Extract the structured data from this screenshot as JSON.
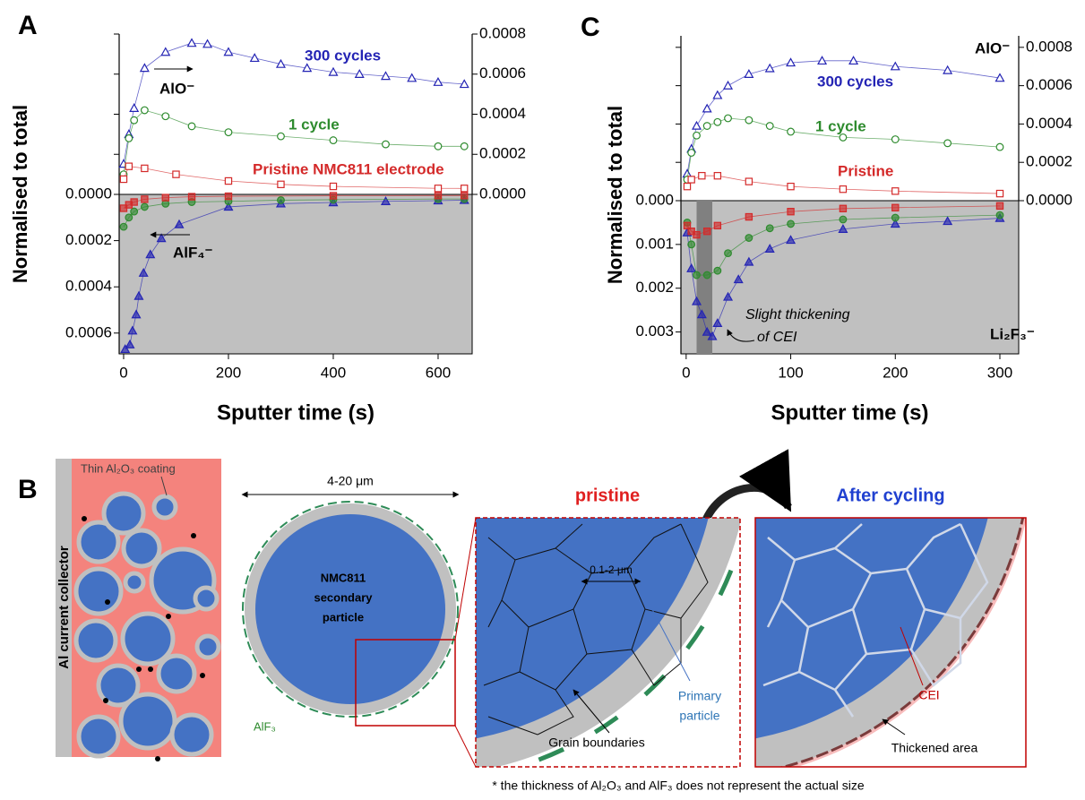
{
  "chart_data": [
    {
      "type": "line",
      "panel": "A",
      "y_label": "Normalised to total",
      "x_label": "Sputter time (s)",
      "xlim": [
        -8.5,
        665
      ],
      "xticks": [
        0,
        200,
        400,
        600
      ],
      "ylim": [
        0.00069,
        0
      ],
      "yticks": [
        {
          "value": 0,
          "label": "0.0000"
        },
        0.0002,
        0.0004,
        0.0006
      ],
      "y2lim": [
        0,
        0.0008
      ],
      "y2ticks": [
        {
          "value": 0,
          "label": "0.0000"
        },
        0.0002,
        0.0004,
        0.0006,
        0.0008
      ],
      "annotations": [
        "AlO⁻",
        "AlF₄⁻"
      ],
      "series": [
        {
          "name": "300 cycles",
          "color": "#2424b4",
          "marker": "triangle",
          "filled": false,
          "axis": "y2",
          "x": [
            0,
            10,
            20,
            40,
            80,
            130,
            160,
            200,
            250,
            300,
            350,
            400,
            450,
            500,
            550,
            600,
            650
          ],
          "values": [
            0.000152,
            0.0003,
            0.00043,
            0.00063,
            0.00071,
            0.000755,
            0.00075,
            0.00071,
            0.00068,
            0.00065,
            0.00063,
            0.00061,
            0.0006,
            0.00059,
            0.00058,
            0.00056,
            0.00055
          ]
        },
        {
          "name": "1 cycle",
          "color": "#2e8b2e",
          "marker": "circle",
          "filled": false,
          "axis": "y2",
          "x": [
            0,
            10,
            20,
            40,
            80,
            130,
            200,
            300,
            400,
            500,
            600,
            650
          ],
          "values": [
            0.0001,
            0.00028,
            0.00037,
            0.00042,
            0.00039,
            0.00034,
            0.00031,
            0.00029,
            0.00027,
            0.00025,
            0.00024,
            0.00024
          ]
        },
        {
          "name": "Pristine NMC811 electrode",
          "color": "#d42a2a",
          "marker": "square",
          "filled": false,
          "axis": "y2",
          "x": [
            0,
            10,
            40,
            100,
            200,
            300,
            400,
            600,
            650
          ],
          "values": [
            7.6e-05,
            0.00014,
            0.00013,
            0.0001,
            6.7e-05,
            5e-05,
            4e-05,
            3e-05,
            3e-05
          ]
        },
        {
          "color": "#2424b4",
          "marker": "triangle",
          "filled": true,
          "x": [
            3,
            12,
            17,
            24,
            29,
            38,
            51,
            72,
            106,
            200,
            300,
            400,
            500,
            600,
            650
          ],
          "values": [
            0.00067,
            0.00065,
            0.00059,
            0.00052,
            0.00044,
            0.00034,
            0.00026,
            0.00019,
            0.00013,
            5.4e-05,
            4e-05,
            3.5e-05,
            3e-05,
            2.7e-05,
            2.5e-05
          ]
        },
        {
          "color": "#2e8b2e",
          "marker": "circle",
          "filled": true,
          "x": [
            0,
            10,
            20,
            40,
            80,
            130,
            200,
            300,
            400,
            600,
            650
          ],
          "values": [
            0.00014,
            0.0001,
            7.4e-05,
            5.4e-05,
            4e-05,
            3.3e-05,
            3e-05,
            2.5e-05,
            2.3e-05,
            2e-05,
            2e-05
          ]
        },
        {
          "color": "#d42a2a",
          "marker": "square",
          "filled": true,
          "x": [
            0,
            10,
            20,
            40,
            80,
            130,
            200,
            400,
            600,
            650
          ],
          "values": [
            6e-05,
            4.5e-05,
            3.3e-05,
            2.1e-05,
            1.4e-05,
            1e-05,
            8e-06,
            6e-06,
            5e-06,
            5e-06
          ]
        }
      ]
    },
    {
      "type": "line",
      "panel": "C",
      "y_label": "Normalised to total",
      "x_label": "Sputter time (s)",
      "xlim": [
        -5,
        318
      ],
      "xticks": [
        0,
        100,
        200,
        300
      ],
      "ylim": [
        0.0035,
        0
      ],
      "yticks": [
        {
          "value": 0,
          "label": "0.000"
        },
        0.001,
        0.002,
        0.003
      ],
      "y2lim": [
        0,
        0.00086
      ],
      "y2ticks": [
        {
          "value": 0,
          "label": "0.0000"
        },
        0.0002,
        0.0004,
        0.0006,
        0.0008
      ],
      "shaded_range": [
        10,
        25
      ],
      "annotations": [
        "AlO⁻",
        "Li₂F₃⁻",
        "Slight thickening",
        "of CEI"
      ],
      "series": [
        {
          "name": "300 cycles",
          "color": "#2424b4",
          "marker": "triangle",
          "filled": false,
          "axis": "y2",
          "x": [
            1,
            5,
            10,
            20,
            30,
            40,
            60,
            80,
            100,
            130,
            160,
            200,
            250,
            300
          ],
          "values": [
            0.00014,
            0.00027,
            0.00039,
            0.00048,
            0.00055,
            0.0006,
            0.00066,
            0.00069,
            0.00072,
            0.00073,
            0.00073,
            0.0007,
            0.00068,
            0.00064
          ]
        },
        {
          "name": "1 cycle",
          "color": "#2e8b2e",
          "marker": "circle",
          "filled": false,
          "axis": "y2",
          "x": [
            1,
            5,
            10,
            20,
            30,
            40,
            60,
            80,
            100,
            150,
            200,
            250,
            300
          ],
          "values": [
            0.00011,
            0.00025,
            0.00034,
            0.00039,
            0.00041,
            0.00043,
            0.00042,
            0.00039,
            0.00036,
            0.00033,
            0.00032,
            0.0003,
            0.00028
          ]
        },
        {
          "name": "Pristine",
          "color": "#d42a2a",
          "marker": "square",
          "filled": false,
          "axis": "y2",
          "x": [
            1,
            5,
            15,
            30,
            60,
            100,
            150,
            200,
            300
          ],
          "values": [
            7.4e-05,
            0.00011,
            0.00013,
            0.00013,
            0.0001,
            7.4e-05,
            6e-05,
            5e-05,
            3.7e-05
          ]
        },
        {
          "color": "#2424b4",
          "marker": "triangle",
          "filled": true,
          "x": [
            1,
            5,
            10,
            15,
            20,
            25,
            30,
            40,
            50,
            60,
            80,
            100,
            150,
            200,
            250,
            300
          ],
          "values": [
            0.00073,
            0.00155,
            0.0023,
            0.0026,
            0.003,
            0.0031,
            0.0028,
            0.0022,
            0.0018,
            0.0014,
            0.0011,
            0.0009,
            0.00065,
            0.00053,
            0.00047,
            0.0004
          ]
        },
        {
          "color": "#2e8b2e",
          "marker": "circle",
          "filled": true,
          "x": [
            1,
            5,
            10,
            20,
            30,
            40,
            60,
            80,
            100,
            150,
            200,
            300
          ],
          "values": [
            0.0005,
            0.001,
            0.0017,
            0.0017,
            0.0016,
            0.0012,
            0.00085,
            0.00063,
            0.00053,
            0.00043,
            0.00039,
            0.00033
          ]
        },
        {
          "color": "#d42a2a",
          "marker": "square",
          "filled": true,
          "x": [
            1,
            5,
            10,
            20,
            30,
            60,
            100,
            150,
            200,
            300
          ],
          "values": [
            0.00057,
            0.0007,
            0.00078,
            0.0007,
            0.00057,
            0.00037,
            0.00025,
            0.00018,
            0.00016,
            0.00012
          ]
        }
      ]
    }
  ],
  "diagram": {
    "panel": "B",
    "collector": "Al current collector",
    "coating": "Thin Al₂O₃ coating",
    "size": "4-20 μm",
    "particle": [
      "NMC811",
      "secondary",
      "particle"
    ],
    "alf3": "AlF₃",
    "pristine": "pristine",
    "after": "After cycling",
    "grain_size": "0.1-2 μm",
    "primary": [
      "Primary",
      "particle"
    ],
    "grain_boundaries": "Grain boundaries",
    "cei": "CEI",
    "thickened": "Thickened area",
    "footnote": "* the thickness of Al₂O₃ and AlF₃ does not represent the actual size"
  }
}
